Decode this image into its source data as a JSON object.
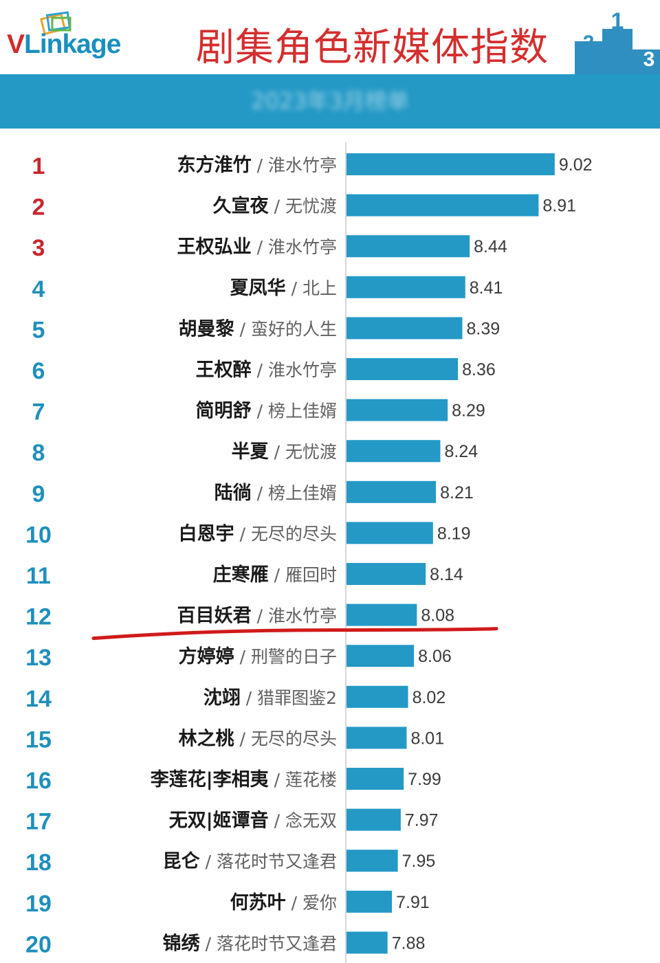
{
  "header": {
    "logo_v": "V",
    "logo_rest": "Linkage",
    "title": "剧集角色新媒体指数",
    "podium_labels": [
      "2",
      "1",
      "3"
    ],
    "subtitle": "2023年3月榜单"
  },
  "colors": {
    "bar": "#2499c6",
    "rank_top3": "#c9252c",
    "rank_other": "#1f8fbd",
    "title": "#d42e2e",
    "underline": "#d11a1a"
  },
  "chart_data": {
    "type": "bar",
    "orientation": "horizontal",
    "title": "剧集角色新媒体指数",
    "xlim": [
      7.6,
      9.18
    ],
    "highlight_rank": 12,
    "rows": [
      {
        "rank": "1",
        "name": "东方淮竹",
        "show": "淮水竹亭",
        "value": 9.02,
        "label": "9.02"
      },
      {
        "rank": "2",
        "name": "久宣夜",
        "show": "无忧渡",
        "value": 8.91,
        "label": "8.91"
      },
      {
        "rank": "3",
        "name": "王权弘业",
        "show": "淮水竹亭",
        "value": 8.44,
        "label": "8.44"
      },
      {
        "rank": "4",
        "name": "夏凤华",
        "show": "北上",
        "value": 8.41,
        "label": "8.41"
      },
      {
        "rank": "5",
        "name": "胡曼黎",
        "show": "蛮好的人生",
        "value": 8.39,
        "label": "8.39"
      },
      {
        "rank": "6",
        "name": "王权醉",
        "show": "淮水竹亭",
        "value": 8.36,
        "label": "8.36"
      },
      {
        "rank": "7",
        "name": "简明舒",
        "show": "榜上佳婿",
        "value": 8.29,
        "label": "8.29"
      },
      {
        "rank": "8",
        "name": "半夏",
        "show": "无忧渡",
        "value": 8.24,
        "label": "8.24"
      },
      {
        "rank": "9",
        "name": "陆徜",
        "show": "榜上佳婿",
        "value": 8.21,
        "label": "8.21"
      },
      {
        "rank": "10",
        "name": "白恩宇",
        "show": "无尽的尽头",
        "value": 8.19,
        "label": "8.19"
      },
      {
        "rank": "11",
        "name": "庄寒雁",
        "show": "雁回时",
        "value": 8.14,
        "label": "8.14"
      },
      {
        "rank": "12",
        "name": "百目妖君",
        "show": "淮水竹亭",
        "value": 8.08,
        "label": "8.08"
      },
      {
        "rank": "13",
        "name": "方婷婷",
        "show": "刑警的日子",
        "value": 8.06,
        "label": "8.06"
      },
      {
        "rank": "14",
        "name": "沈翊",
        "show": "猎罪图鉴2",
        "value": 8.02,
        "label": "8.02"
      },
      {
        "rank": "15",
        "name": "林之桃",
        "show": "无尽的尽头",
        "value": 8.01,
        "label": "8.01"
      },
      {
        "rank": "16",
        "name": "李莲花|李相夷",
        "show": "莲花楼",
        "value": 7.99,
        "label": "7.99"
      },
      {
        "rank": "17",
        "name": "无双|姬谭音",
        "show": "念无双",
        "value": 7.97,
        "label": "7.97"
      },
      {
        "rank": "18",
        "name": "昆仑",
        "show": "落花时节又逢君",
        "value": 7.95,
        "label": "7.95"
      },
      {
        "rank": "19",
        "name": "何苏叶",
        "show": "爱你",
        "value": 7.91,
        "label": "7.91"
      },
      {
        "rank": "20",
        "name": "锦绣",
        "show": "落花时节又逢君",
        "value": 7.88,
        "label": "7.88"
      }
    ]
  }
}
